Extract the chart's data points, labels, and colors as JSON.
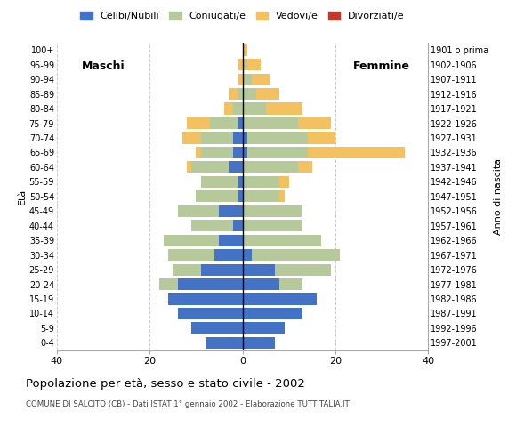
{
  "age_groups": [
    "0-4",
    "5-9",
    "10-14",
    "15-19",
    "20-24",
    "25-29",
    "30-34",
    "35-39",
    "40-44",
    "45-49",
    "50-54",
    "55-59",
    "60-64",
    "65-69",
    "70-74",
    "75-79",
    "80-84",
    "85-89",
    "90-94",
    "95-99",
    "100+"
  ],
  "birth_years": [
    "1997-2001",
    "1992-1996",
    "1987-1991",
    "1982-1986",
    "1977-1981",
    "1972-1976",
    "1967-1971",
    "1962-1966",
    "1957-1961",
    "1952-1956",
    "1947-1951",
    "1942-1946",
    "1937-1941",
    "1932-1936",
    "1927-1931",
    "1922-1926",
    "1917-1921",
    "1912-1916",
    "1907-1911",
    "1902-1906",
    "1901 o prima"
  ],
  "male_single": [
    8,
    11,
    14,
    16,
    14,
    9,
    6,
    5,
    2,
    5,
    1,
    1,
    3,
    2,
    2,
    1,
    0,
    0,
    0,
    0,
    0
  ],
  "male_married": [
    0,
    0,
    0,
    0,
    4,
    6,
    10,
    12,
    9,
    9,
    9,
    8,
    8,
    7,
    7,
    6,
    2,
    1,
    0,
    0,
    0
  ],
  "male_widowed": [
    0,
    0,
    0,
    0,
    0,
    0,
    0,
    0,
    0,
    0,
    0,
    0,
    1,
    1,
    4,
    5,
    2,
    2,
    1,
    1,
    0
  ],
  "male_divorced": [
    0,
    0,
    0,
    0,
    0,
    0,
    0,
    0,
    0,
    0,
    0,
    0,
    0,
    0,
    0,
    0,
    0,
    0,
    0,
    0,
    0
  ],
  "female_single": [
    7,
    9,
    13,
    16,
    8,
    7,
    2,
    0,
    0,
    0,
    0,
    0,
    0,
    1,
    1,
    0,
    0,
    0,
    0,
    0,
    0
  ],
  "female_married": [
    0,
    0,
    0,
    0,
    5,
    12,
    19,
    17,
    13,
    13,
    8,
    8,
    12,
    13,
    13,
    12,
    5,
    3,
    2,
    1,
    0
  ],
  "female_widowed": [
    0,
    0,
    0,
    0,
    0,
    0,
    0,
    0,
    0,
    0,
    1,
    2,
    3,
    21,
    6,
    7,
    8,
    5,
    4,
    3,
    1
  ],
  "female_divorced": [
    0,
    0,
    0,
    0,
    0,
    0,
    0,
    0,
    0,
    0,
    0,
    0,
    0,
    0,
    0,
    0,
    0,
    0,
    0,
    0,
    0
  ],
  "color_single": "#4472c4",
  "color_married": "#b5c99a",
  "color_widowed": "#f4c161",
  "color_divorced": "#c0392b",
  "title": "Popolazione per età, sesso e stato civile - 2002",
  "subtitle": "COMUNE DI SALCITO (CB) - Dati ISTAT 1° gennaio 2002 - Elaborazione TUTTITALIA.IT",
  "xlabel_left": "Maschi",
  "xlabel_right": "Femmine",
  "ylabel": "Età",
  "ylabel_right": "Anno di nascita",
  "xlim": 40,
  "legend_labels": [
    "Celibi/Nubili",
    "Coniugati/e",
    "Vedovi/e",
    "Divorziati/e"
  ],
  "bg_color": "#ffffff",
  "grid_color": "#cccccc"
}
